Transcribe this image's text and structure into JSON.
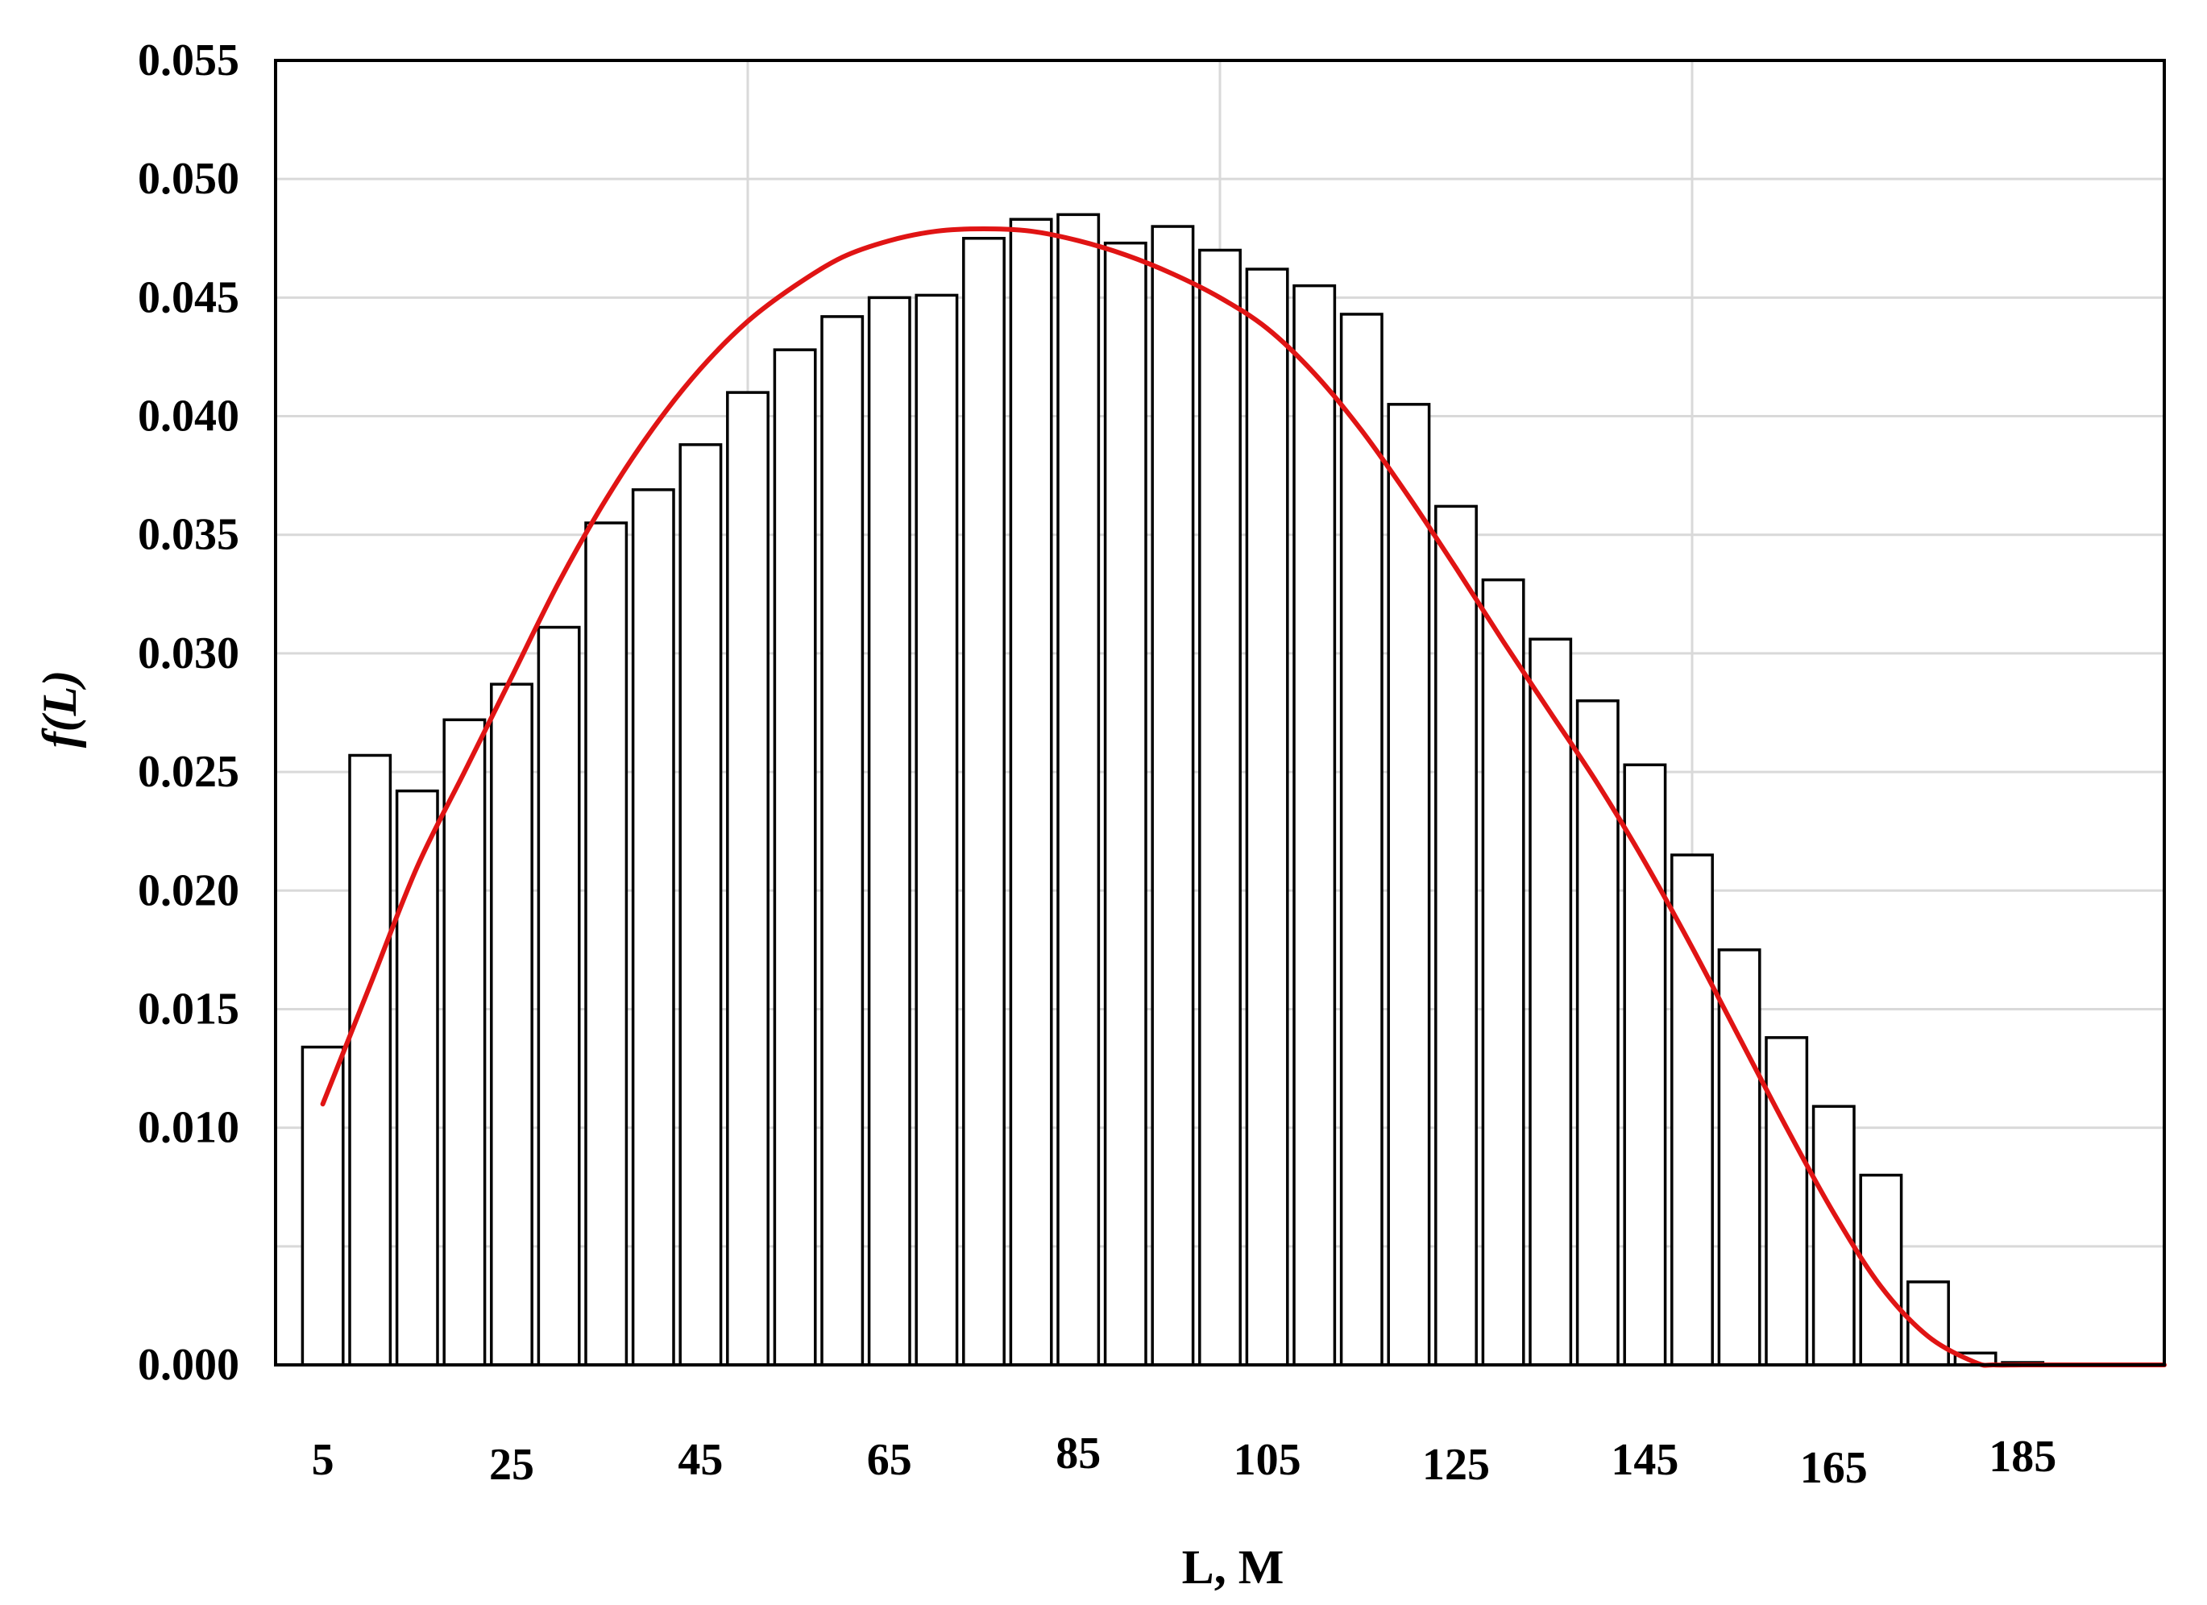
{
  "chart_data": {
    "type": "bar",
    "xlabel": "L, M",
    "ylabel": "f(L)",
    "ylim": [
      0,
      0.055
    ],
    "xlim": [
      0,
      200
    ],
    "grid": true,
    "bin_width": 5,
    "x_tick_values": [
      5,
      25,
      45,
      65,
      85,
      105,
      125,
      145,
      165,
      185
    ],
    "x_tick_labels": [
      "5",
      "25",
      "45",
      "65",
      "85",
      "105",
      "125",
      "145",
      "165",
      "185"
    ],
    "y_tick_values": [
      0,
      0.005,
      0.01,
      0.015,
      0.02,
      0.025,
      0.03,
      0.035,
      0.04,
      0.045,
      0.05,
      0.055
    ],
    "y_tick_labels": [
      "0.000",
      "",
      "0.010",
      "0.015",
      "0.020",
      "0.025",
      "0.030",
      "0.035",
      "0.040",
      "0.045",
      "0.050",
      "0.055"
    ],
    "categories": [
      "5",
      "10",
      "15",
      "20",
      "25",
      "30",
      "35",
      "40",
      "45",
      "50",
      "55",
      "60",
      "65",
      "70",
      "75",
      "80",
      "85",
      "90",
      "95",
      "100",
      "105",
      "110",
      "115",
      "120",
      "125",
      "130",
      "135",
      "140",
      "145",
      "150",
      "155",
      "160",
      "165",
      "170",
      "175",
      "180",
      "185"
    ],
    "values": [
      0.0134,
      0.0257,
      0.0242,
      0.0272,
      0.0287,
      0.0311,
      0.0355,
      0.0369,
      0.0388,
      0.041,
      0.0428,
      0.0442,
      0.045,
      0.0451,
      0.0475,
      0.0483,
      0.0485,
      0.0473,
      0.048,
      0.047,
      0.0462,
      0.0455,
      0.0443,
      0.0405,
      0.0362,
      0.0331,
      0.0306,
      0.028,
      0.0253,
      0.0215,
      0.0175,
      0.0138,
      0.0109,
      0.008,
      0.0035,
      0.0005,
      0.0001
    ],
    "colors": {
      "bar_fill": "#ffffff",
      "bar_stroke": "#000000",
      "curve": "#e01414",
      "grid": "#d9d9d9",
      "frame": "#000000"
    },
    "curve": {
      "x": [
        5,
        10,
        15,
        20,
        25,
        30,
        35,
        40,
        45,
        50,
        55,
        60,
        65,
        70,
        75,
        80,
        85,
        90,
        95,
        100,
        105,
        110,
        115,
        120,
        125,
        130,
        135,
        140,
        145,
        150,
        155,
        160,
        165,
        170,
        175,
        180,
        182,
        185,
        190,
        195,
        200
      ],
      "y": [
        0.011,
        0.016,
        0.021,
        0.025,
        0.029,
        0.033,
        0.0365,
        0.0395,
        0.042,
        0.044,
        0.0455,
        0.0467,
        0.0474,
        0.0478,
        0.0479,
        0.0478,
        0.0474,
        0.0468,
        0.046,
        0.045,
        0.0437,
        0.0418,
        0.0394,
        0.0366,
        0.0336,
        0.0305,
        0.0275,
        0.0245,
        0.0212,
        0.0176,
        0.0138,
        0.01,
        0.0064,
        0.0033,
        0.0012,
        0.0001,
        0.0,
        0.0,
        0.0,
        0.0,
        0.0
      ]
    }
  }
}
